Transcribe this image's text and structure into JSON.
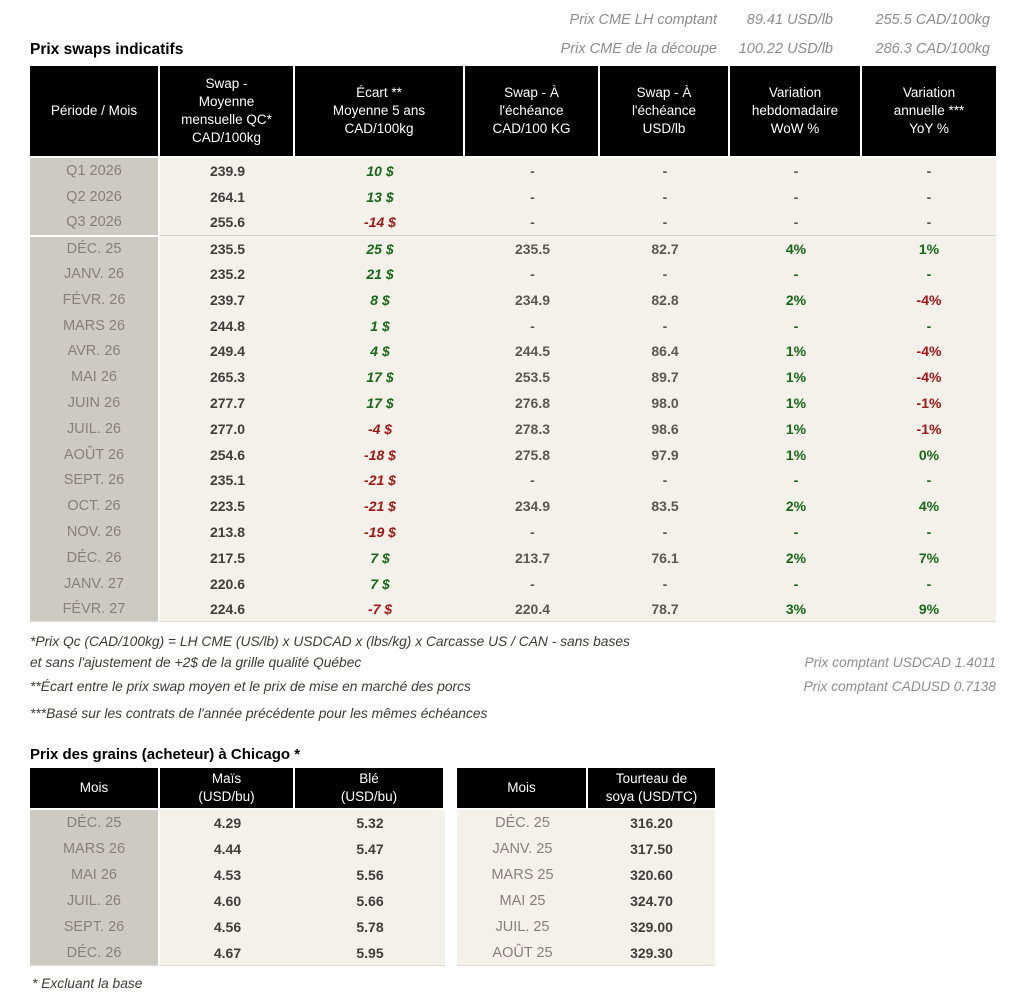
{
  "top_right": {
    "lines": [
      {
        "label": "Prix CME LH comptant",
        "usd": "89.41 USD/lb",
        "cad": "255.5 CAD/100kg"
      },
      {
        "label": "Prix CME de la découpe",
        "usd": "100.22 USD/lb",
        "cad": "286.3 CAD/100kg"
      }
    ]
  },
  "swap_section": {
    "title": "Prix swaps indicatifs",
    "headers": [
      "Période / Mois",
      "Swap -\nMoyenne\nmensuelle QC*\nCAD/100kg",
      "Écart **\nMoyenne 5 ans\nCAD/100kg",
      "Swap - À\nl'échéance\nCAD/100 KG",
      "Swap - À\nl'échéance\nUSD/lb",
      "Variation\nhebdomadaire\nWoW %",
      "Variation\nannuelle ***\nYoY %"
    ],
    "rows": [
      {
        "period": "Q1 2026",
        "avg": "239.9",
        "ecart": "10 $",
        "ecart_tone": "pos",
        "cad": "-",
        "usd": "-",
        "wow": "-",
        "wow_tone": "neutral",
        "yoy": "-",
        "yoy_tone": "neutral",
        "group_start": false
      },
      {
        "period": "Q2 2026",
        "avg": "264.1",
        "ecart": "13 $",
        "ecart_tone": "pos",
        "cad": "-",
        "usd": "-",
        "wow": "-",
        "wow_tone": "neutral",
        "yoy": "-",
        "yoy_tone": "neutral",
        "group_start": false
      },
      {
        "period": "Q3 2026",
        "avg": "255.6",
        "ecart": "-14 $",
        "ecart_tone": "neg",
        "cad": "-",
        "usd": "-",
        "wow": "-",
        "wow_tone": "neutral",
        "yoy": "-",
        "yoy_tone": "neutral",
        "group_start": false
      },
      {
        "period": "DÉC. 25",
        "avg": "235.5",
        "ecart": "25 $",
        "ecart_tone": "pos",
        "cad": "235.5",
        "usd": "82.7",
        "wow": "4%",
        "wow_tone": "pos",
        "yoy": "1%",
        "yoy_tone": "pos",
        "group_start": true
      },
      {
        "period": "JANV. 26",
        "avg": "235.2",
        "ecart": "21 $",
        "ecart_tone": "pos",
        "cad": "-",
        "usd": "-",
        "wow": "-",
        "wow_tone": "pos",
        "yoy": "-",
        "yoy_tone": "pos",
        "group_start": false
      },
      {
        "period": "FÉVR. 26",
        "avg": "239.7",
        "ecart": "8 $",
        "ecart_tone": "pos",
        "cad": "234.9",
        "usd": "82.8",
        "wow": "2%",
        "wow_tone": "pos",
        "yoy": "-4%",
        "yoy_tone": "neg",
        "group_start": false
      },
      {
        "period": "MARS 26",
        "avg": "244.8",
        "ecart": "1 $",
        "ecart_tone": "pos",
        "cad": "-",
        "usd": "-",
        "wow": "-",
        "wow_tone": "pos",
        "yoy": "-",
        "yoy_tone": "pos",
        "group_start": false
      },
      {
        "period": "AVR. 26",
        "avg": "249.4",
        "ecart": "4 $",
        "ecart_tone": "pos",
        "cad": "244.5",
        "usd": "86.4",
        "wow": "1%",
        "wow_tone": "pos",
        "yoy": "-4%",
        "yoy_tone": "neg",
        "group_start": false
      },
      {
        "period": "MAI 26",
        "avg": "265.3",
        "ecart": "17 $",
        "ecart_tone": "pos",
        "cad": "253.5",
        "usd": "89.7",
        "wow": "1%",
        "wow_tone": "pos",
        "yoy": "-4%",
        "yoy_tone": "neg",
        "group_start": false
      },
      {
        "period": "JUIN 26",
        "avg": "277.7",
        "ecart": "17 $",
        "ecart_tone": "pos",
        "cad": "276.8",
        "usd": "98.0",
        "wow": "1%",
        "wow_tone": "pos",
        "yoy": "-1%",
        "yoy_tone": "neg",
        "group_start": false
      },
      {
        "period": "JUIL. 26",
        "avg": "277.0",
        "ecart": "-4 $",
        "ecart_tone": "neg",
        "cad": "278.3",
        "usd": "98.6",
        "wow": "1%",
        "wow_tone": "pos",
        "yoy": "-1%",
        "yoy_tone": "neg",
        "group_start": false
      },
      {
        "period": "AOÛT 26",
        "avg": "254.6",
        "ecart": "-18 $",
        "ecart_tone": "neg",
        "cad": "275.8",
        "usd": "97.9",
        "wow": "1%",
        "wow_tone": "pos",
        "yoy": "0%",
        "yoy_tone": "pos",
        "group_start": false
      },
      {
        "period": "SEPT. 26",
        "avg": "235.1",
        "ecart": "-21 $",
        "ecart_tone": "neg",
        "cad": "-",
        "usd": "-",
        "wow": "-",
        "wow_tone": "pos",
        "yoy": "-",
        "yoy_tone": "pos",
        "group_start": false
      },
      {
        "period": "OCT. 26",
        "avg": "223.5",
        "ecart": "-21 $",
        "ecart_tone": "neg",
        "cad": "234.9",
        "usd": "83.5",
        "wow": "2%",
        "wow_tone": "pos",
        "yoy": "4%",
        "yoy_tone": "pos",
        "group_start": false
      },
      {
        "period": "NOV. 26",
        "avg": "213.8",
        "ecart": "-19 $",
        "ecart_tone": "neg",
        "cad": "-",
        "usd": "-",
        "wow": "-",
        "wow_tone": "pos",
        "yoy": "-",
        "yoy_tone": "pos",
        "group_start": false
      },
      {
        "period": "DÉC. 26",
        "avg": "217.5",
        "ecart": "7 $",
        "ecart_tone": "pos",
        "cad": "213.7",
        "usd": "76.1",
        "wow": "2%",
        "wow_tone": "pos",
        "yoy": "7%",
        "yoy_tone": "pos",
        "group_start": false
      },
      {
        "period": "JANV. 27",
        "avg": "220.6",
        "ecart": "7 $",
        "ecart_tone": "pos",
        "cad": "-",
        "usd": "-",
        "wow": "-",
        "wow_tone": "pos",
        "yoy": "-",
        "yoy_tone": "pos",
        "group_start": false
      },
      {
        "period": "FÉVR. 27",
        "avg": "224.6",
        "ecart": "-7 $",
        "ecart_tone": "neg",
        "cad": "220.4",
        "usd": "78.7",
        "wow": "3%",
        "wow_tone": "pos",
        "yoy": "9%",
        "yoy_tone": "pos",
        "group_start": false
      }
    ],
    "footnotes": [
      "*Prix Qc (CAD/100kg) = LH CME (US/lb) x USDCAD x (lbs/kg) x Carcasse US / CAN - sans bases",
      "et sans l'ajustement de +2$ de la grille qualité Québec",
      "**Écart entre le prix swap moyen et le prix de mise en marché des porcs",
      "***Basé sur les contrats de l'année précédente pour les mêmes échéances"
    ],
    "fx_rates": [
      "Prix comptant USDCAD 1.4011",
      "Prix comptant CADUSD 0.7138"
    ]
  },
  "grain_section": {
    "title": "Prix des grains (acheteur) à Chicago *",
    "headers": [
      "Mois",
      "Maïs\n(USD/bu)",
      "Blé\n(USD/bu)",
      "Mois",
      "Tourteau de\nsoya (USD/TC)"
    ],
    "rows": [
      {
        "mois": "DÉC. 25",
        "mais": "4.29",
        "ble": "5.32",
        "mois2": "DÉC. 25",
        "tourteau": "316.20"
      },
      {
        "mois": "MARS 26",
        "mais": "4.44",
        "ble": "5.47",
        "mois2": "JANV. 25",
        "tourteau": "317.50"
      },
      {
        "mois": "MAI 26",
        "mais": "4.53",
        "ble": "5.56",
        "mois2": "MARS 25",
        "tourteau": "320.60"
      },
      {
        "mois": "JUIL. 26",
        "mais": "4.60",
        "ble": "5.66",
        "mois2": "MAI 25",
        "tourteau": "324.70"
      },
      {
        "mois": "SEPT. 26",
        "mais": "4.56",
        "ble": "5.78",
        "mois2": "JUIL. 25",
        "tourteau": "329.00"
      },
      {
        "mois": "DÉC. 26",
        "mais": "4.67",
        "ble": "5.95",
        "mois2": "AOÛT 25",
        "tourteau": "329.30"
      }
    ],
    "footnote": "* Excluant la base"
  },
  "colors": {
    "positive_green": "#176817",
    "negative_red": "#a31616",
    "header_bg": "#000000",
    "row_label_bg": "#cdc9c3",
    "data_bg": "#f4f1ea",
    "label_text": "#85817a",
    "annotation_gray": "#8c8c8c"
  }
}
